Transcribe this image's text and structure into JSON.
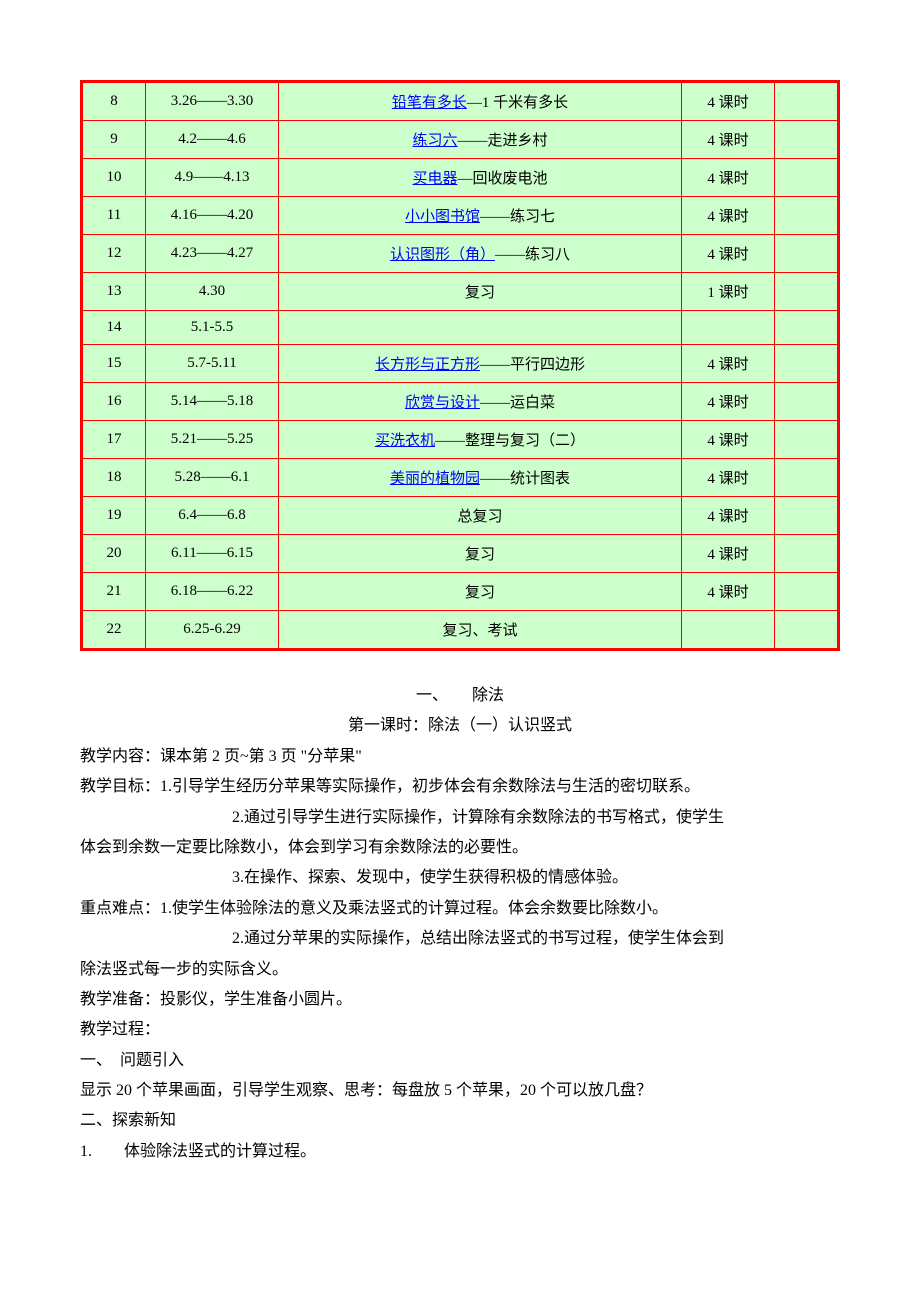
{
  "table": {
    "rows": [
      {
        "num": "8",
        "date": "3.26——3.30",
        "link": "铅笔有多长",
        "sep": "—",
        "rest": "1 千米有多长",
        "hours": "4 课时"
      },
      {
        "num": "9",
        "date": "4.2——4.6",
        "link": "练习六",
        "sep": "——",
        "rest": "走进乡村",
        "hours": "4 课时"
      },
      {
        "num": "10",
        "date": "4.9——4.13",
        "link": "买电器",
        "sep": "—",
        "rest": "回收废电池",
        "hours": "4 课时"
      },
      {
        "num": "11",
        "date": "4.16——4.20",
        "link": "小小图书馆",
        "sep": "——",
        "rest": "练习七",
        "hours": "4 课时"
      },
      {
        "num": "12",
        "date": "4.23——4.27",
        "link": "认识图形（角）",
        "sep": "——",
        "rest": "练习八",
        "hours": "4 课时"
      },
      {
        "num": "13",
        "date": "4.30",
        "link": "",
        "sep": "",
        "rest": "复习",
        "hours": "1 课时"
      },
      {
        "num": "14",
        "date": "5.1-5.5",
        "link": "",
        "sep": "",
        "rest": "",
        "hours": ""
      },
      {
        "num": "15",
        "date": "5.7-5.11",
        "link": "长方形与正方形",
        "sep": "——",
        "rest": "平行四边形",
        "hours": "4 课时"
      },
      {
        "num": "16",
        "date": "5.14——5.18",
        "link": "欣赏与设计",
        "sep": "——",
        "rest": "运白菜",
        "hours": "4 课时"
      },
      {
        "num": "17",
        "date": "5.21——5.25",
        "link": "买洗衣机",
        "sep": "——",
        "rest": "整理与复习（二）",
        "hours": "4 课时"
      },
      {
        "num": "18",
        "date": "5.28——6.1",
        "link": "美丽的植物园",
        "sep": "——",
        "rest": "统计图表",
        "hours": "4 课时"
      },
      {
        "num": "19",
        "date": "6.4——6.8",
        "link": "",
        "sep": "",
        "rest": "总复习",
        "hours": "4 课时"
      },
      {
        "num": "20",
        "date": "6.11——6.15",
        "link": "",
        "sep": "",
        "rest": "复习",
        "hours": "4 课时"
      },
      {
        "num": "21",
        "date": "6.18——6.22",
        "link": "",
        "sep": "",
        "rest": "复习",
        "hours": "4 课时"
      },
      {
        "num": "22",
        "date": "6.25-6.29",
        "link": "",
        "sep": "",
        "rest": "复习、考试",
        "hours": ""
      }
    ]
  },
  "section": {
    "title1": "一、　　除法",
    "title2": "第一课时：除法（一）认识竖式",
    "p1": "教学内容：课本第 2 页~第 3 页 \"分苹果\"",
    "p2": "教学目标：1.引导学生经历分苹果等实际操作，初步体会有余数除法与生活的密切联系。",
    "p3": "2.通过引导学生进行实际操作，计算除有余数除法的书写格式，使学生",
    "p3b": "体会到余数一定要比除数小，体会到学习有余数除法的必要性。",
    "p4": "3.在操作、探索、发现中，使学生获得积极的情感体验。",
    "p5": "重点难点：1.使学生体验除法的意义及乘法竖式的计算过程。体会余数要比除数小。",
    "p6": "2.通过分苹果的实际操作，总结出除法竖式的书写过程，使学生体会到",
    "p6b": "除法竖式每一步的实际含义。",
    "p7": "教学准备：投影仪，学生准备小圆片。",
    "p8": "教学过程：",
    "p9": "一、　问题引入",
    "p10": "显示 20 个苹果画面，引导学生观察、思考：每盘放 5 个苹果，20 个可以放几盘？",
    "p11": "二、探索新知",
    "p12": "1.　　体验除法竖式的计算过程。"
  }
}
